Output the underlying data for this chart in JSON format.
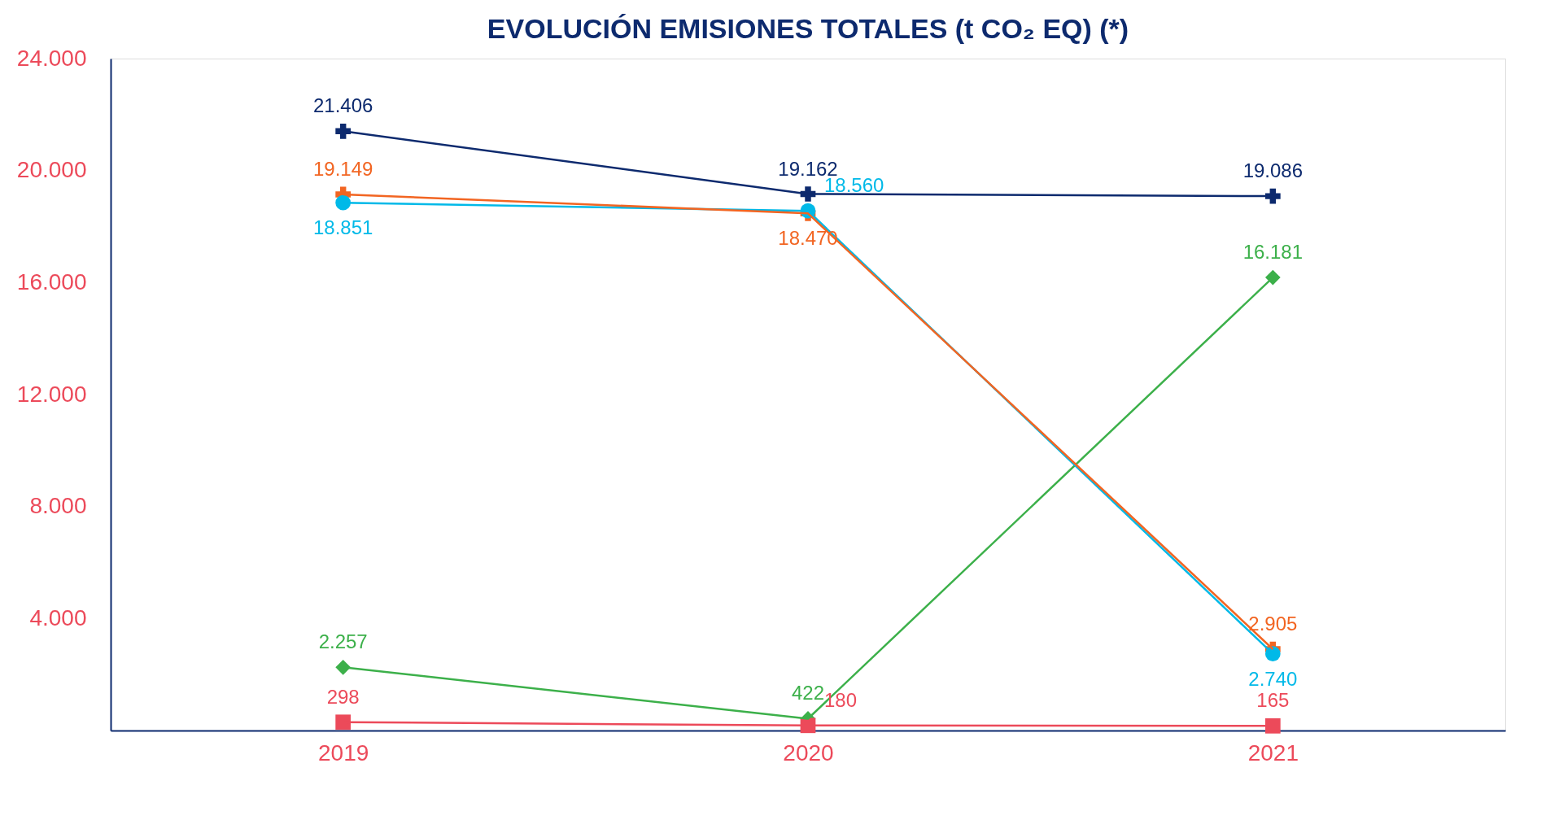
{
  "chart_data": {
    "type": "line",
    "title": "EVOLUCIÓN EMISIONES TOTALES (t CO₂ EQ) (*)",
    "categories": [
      "2019",
      "2020",
      "2021"
    ],
    "ylim": [
      0,
      24000
    ],
    "yticks": [
      {
        "value": 4000,
        "label": "4.000"
      },
      {
        "value": 8000,
        "label": "8.000"
      },
      {
        "value": 12000,
        "label": "12.000"
      },
      {
        "value": 16000,
        "label": "16.000"
      },
      {
        "value": 20000,
        "label": "20.000"
      },
      {
        "value": 24000,
        "label": "24.000"
      }
    ],
    "grid": false,
    "series": [
      {
        "color": "#0d2a6e",
        "marker": "cross",
        "values": [
          21406,
          19162,
          19086
        ],
        "value_labels": [
          "21.406",
          "19.162",
          "19.086"
        ]
      },
      {
        "color": "#f26522",
        "marker": "cross",
        "values": [
          19149,
          18470,
          2905
        ],
        "value_labels": [
          "19.149",
          "18.470",
          "2.905"
        ]
      },
      {
        "color": "#00b9e8",
        "marker": "circle",
        "values": [
          18851,
          18560,
          2740
        ],
        "value_labels": [
          "18.851",
          "18.560",
          "2.740"
        ]
      },
      {
        "color": "#3cb04a",
        "marker": "diamond",
        "values": [
          2257,
          422,
          16181
        ],
        "value_labels": [
          "2.257",
          "422",
          "16.181"
        ]
      },
      {
        "color": "#ec4a5a",
        "marker": "square",
        "values": [
          298,
          180,
          165
        ],
        "value_labels": [
          "298",
          "180",
          "165"
        ]
      }
    ]
  }
}
